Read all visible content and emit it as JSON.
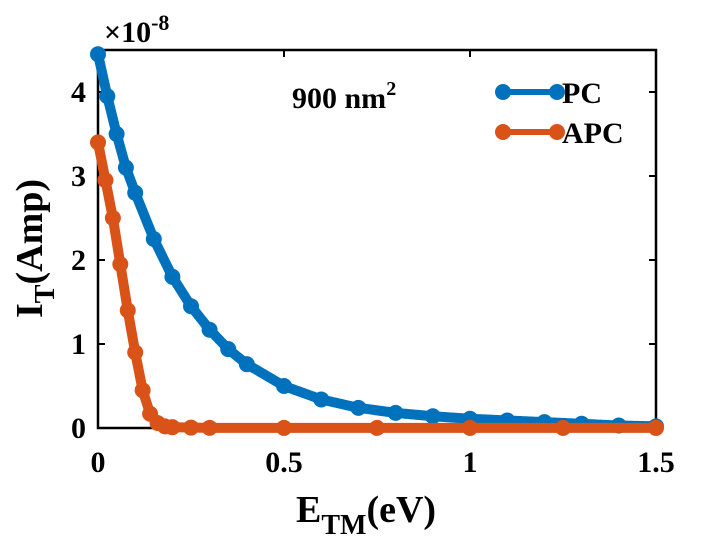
{
  "chart_data": {
    "type": "line",
    "title": "",
    "xlabel": {
      "main": "E",
      "sub": "TM",
      "unit": "(eV)"
    },
    "ylabel": {
      "main": "I",
      "sub": "T",
      "unit": "(Amp)"
    },
    "y_multiplier": {
      "base": "×10",
      "exponent": "-8"
    },
    "xlim": [
      0,
      1.5
    ],
    "ylim": [
      0,
      4.5
    ],
    "xticks": [
      "0",
      "0.5",
      "1",
      "1.5"
    ],
    "xtick_values": [
      0,
      0.5,
      1,
      1.5
    ],
    "yticks": [
      "0",
      "1",
      "2",
      "3",
      "4"
    ],
    "ytick_values": [
      0,
      1,
      2,
      3,
      4
    ],
    "grid": false,
    "legend_position": "top-right",
    "annotation": {
      "text": "900 nm",
      "superscript": "2"
    },
    "series": [
      {
        "name": "PC",
        "color": "#0072bd",
        "x": [
          0,
          0.025,
          0.05,
          0.075,
          0.1,
          0.15,
          0.2,
          0.25,
          0.3,
          0.35,
          0.4,
          0.5,
          0.6,
          0.7,
          0.8,
          0.9,
          1.0,
          1.1,
          1.2,
          1.3,
          1.4,
          1.5
        ],
        "values": [
          4.45,
          3.95,
          3.5,
          3.1,
          2.8,
          2.25,
          1.8,
          1.45,
          1.17,
          0.94,
          0.76,
          0.5,
          0.34,
          0.24,
          0.18,
          0.14,
          0.11,
          0.09,
          0.07,
          0.05,
          0.03,
          0.02
        ]
      },
      {
        "name": "APC",
        "color": "#d95319",
        "x": [
          0,
          0.02,
          0.04,
          0.06,
          0.08,
          0.1,
          0.12,
          0.14,
          0.16,
          0.18,
          0.2,
          0.25,
          0.3,
          0.5,
          0.75,
          1.0,
          1.25,
          1.5
        ],
        "values": [
          3.4,
          2.95,
          2.5,
          1.95,
          1.4,
          0.9,
          0.45,
          0.17,
          0.06,
          0.02,
          0.01,
          0.005,
          0.002,
          0.001,
          0.001,
          0.001,
          0.001,
          0.001
        ]
      }
    ]
  }
}
